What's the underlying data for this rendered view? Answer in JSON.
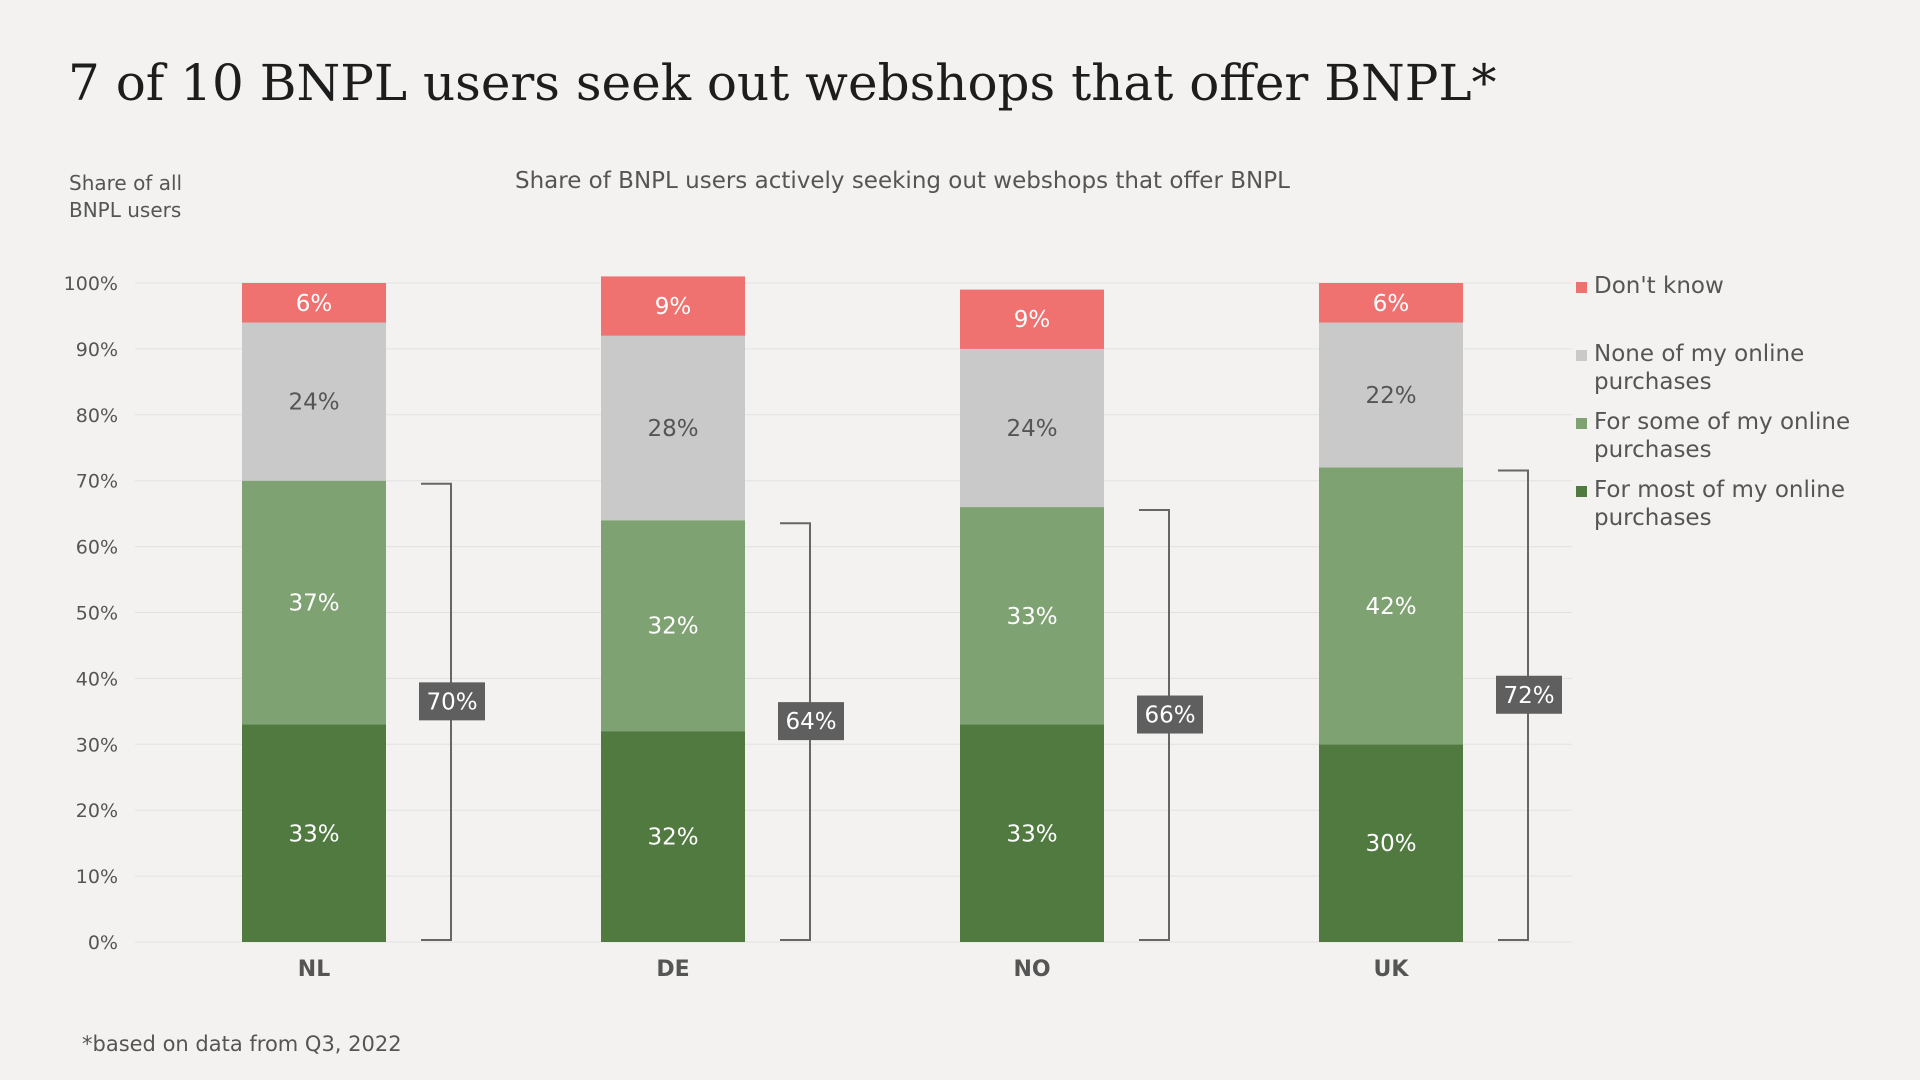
{
  "header": {
    "title": "7 of 10 BNPL users seek out webshops that offer BNPL*",
    "y_axis_label": "Share of all BNPL users",
    "subtitle": "Share of BNPL users actively seeking out webshops that offer BNPL"
  },
  "footnote": "*based on data from Q3, 2022",
  "chart_data": {
    "type": "bar",
    "stacked": true,
    "title": "7 of 10 BNPL users seek out webshops that offer BNPL*",
    "subtitle": "Share of BNPL users actively seeking out webshops that offer BNPL",
    "ylabel": "Share of all BNPL users",
    "xlabel": "",
    "ylim": [
      0,
      100
    ],
    "y_ticks": [
      "0%",
      "10%",
      "20%",
      "30%",
      "40%",
      "50%",
      "60%",
      "70%",
      "80%",
      "90%",
      "100%"
    ],
    "grid": true,
    "legend_position": "right",
    "categories": [
      "NL",
      "DE",
      "NO",
      "UK"
    ],
    "series": [
      {
        "name": "For most of my online purchases",
        "values": [
          33,
          32,
          33,
          30
        ],
        "labels": [
          "33%",
          "32%",
          "33%",
          "30%"
        ],
        "color": "#517a41",
        "label_color": "#ffffff"
      },
      {
        "name": "For some of my online purchases",
        "values": [
          37,
          32,
          33,
          42
        ],
        "labels": [
          "37%",
          "32%",
          "33%",
          "42%"
        ],
        "color": "#7fa272",
        "label_color": "#ffffff"
      },
      {
        "name": "None of my online purchases",
        "values": [
          24,
          28,
          24,
          22
        ],
        "labels": [
          "24%",
          "28%",
          "24%",
          "22%"
        ],
        "color": "#c9c9c9",
        "label_color": "#555555"
      },
      {
        "name": "Don't know",
        "values": [
          6,
          9,
          9,
          6
        ],
        "labels": [
          "6%",
          "9%",
          "9%",
          "6%"
        ],
        "color": "#ef7170",
        "label_color": "#ffffff"
      }
    ],
    "totals": {
      "values": [
        70,
        64,
        66,
        72
      ],
      "labels": [
        "70%",
        "64%",
        "66%",
        "72%"
      ],
      "color": "#5f5f5f"
    }
  },
  "legend": {
    "items": [
      {
        "label": "Don't know",
        "color": "#ef7170"
      },
      {
        "label": "None of my online purchases",
        "color": "#c9c9c9"
      },
      {
        "label": "For some of my online purchases",
        "color": "#7fa272"
      },
      {
        "label": "For most of my online purchases",
        "color": "#517a41"
      }
    ]
  }
}
